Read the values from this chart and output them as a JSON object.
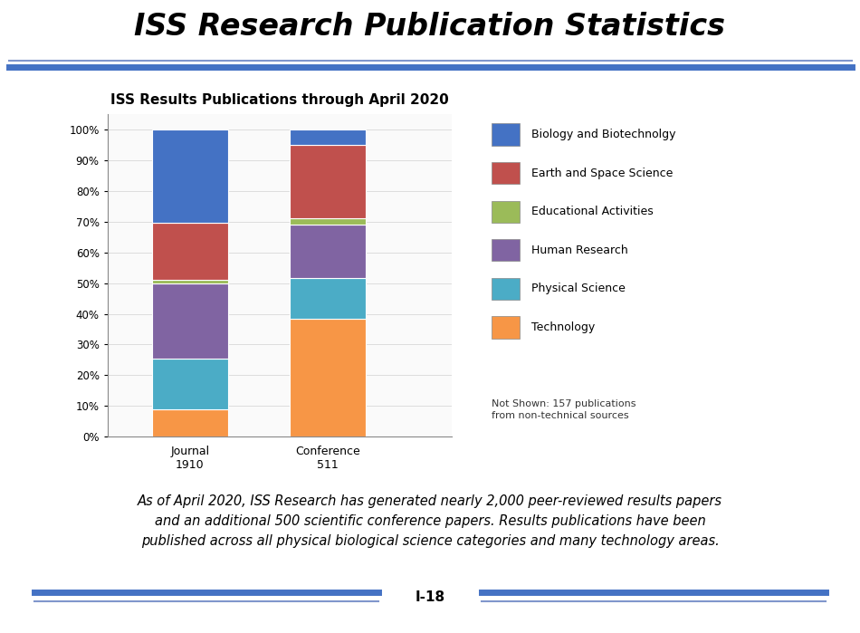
{
  "title": "ISS Research Publication Statistics",
  "chart_title": "ISS Results Publications through April 2020",
  "categories": [
    "Journal\n1910",
    "Conference\n511"
  ],
  "segments": [
    {
      "label": "Technology",
      "color": "#F79646",
      "values": [
        0.09,
        0.383
      ]
    },
    {
      "label": "Physical Science",
      "color": "#4BACC6",
      "values": [
        0.163,
        0.133
      ]
    },
    {
      "label": "Human Research",
      "color": "#8064A2",
      "values": [
        0.246,
        0.174
      ]
    },
    {
      "label": "Educational Activities",
      "color": "#9BBB59",
      "values": [
        0.01,
        0.02
      ]
    },
    {
      "label": "Earth and Space Science",
      "color": "#C0504D",
      "values": [
        0.188,
        0.239
      ]
    },
    {
      "label": "Biology and Biotechnolgy",
      "color": "#4472C4",
      "values": [
        0.303,
        0.051
      ]
    }
  ],
  "legend_order": [
    "Biology and Biotechnolgy",
    "Earth and Space Science",
    "Educational Activities",
    "Human Research",
    "Physical Science",
    "Technology"
  ],
  "legend_colors": [
    "#4472C4",
    "#C0504D",
    "#9BBB59",
    "#8064A2",
    "#4BACC6",
    "#F79646"
  ],
  "note": "Not Shown: 157 publications\nfrom non-technical sources",
  "footer_text": "As of April 2020, ISS Research has generated nearly 2,000 peer-reviewed results papers\nand an additional 500 scientific conference papers. Results publications have been\npublished across all physical biological science categories and many technology areas.",
  "page_label": "I-18",
  "bg_color": "#FFFFFF",
  "header_line_color1": "#4472C4",
  "header_line_color2": "#6B8CCC",
  "bar_width": 0.55,
  "ylim": [
    0,
    1.05
  ],
  "yticks": [
    0.0,
    0.1,
    0.2,
    0.3,
    0.4,
    0.5,
    0.6,
    0.7,
    0.8,
    0.9,
    1.0
  ],
  "yticklabels": [
    "0%",
    "10%",
    "20%",
    "30%",
    "40%",
    "50%",
    "60%",
    "70%",
    "80%",
    "90%",
    "100%"
  ]
}
